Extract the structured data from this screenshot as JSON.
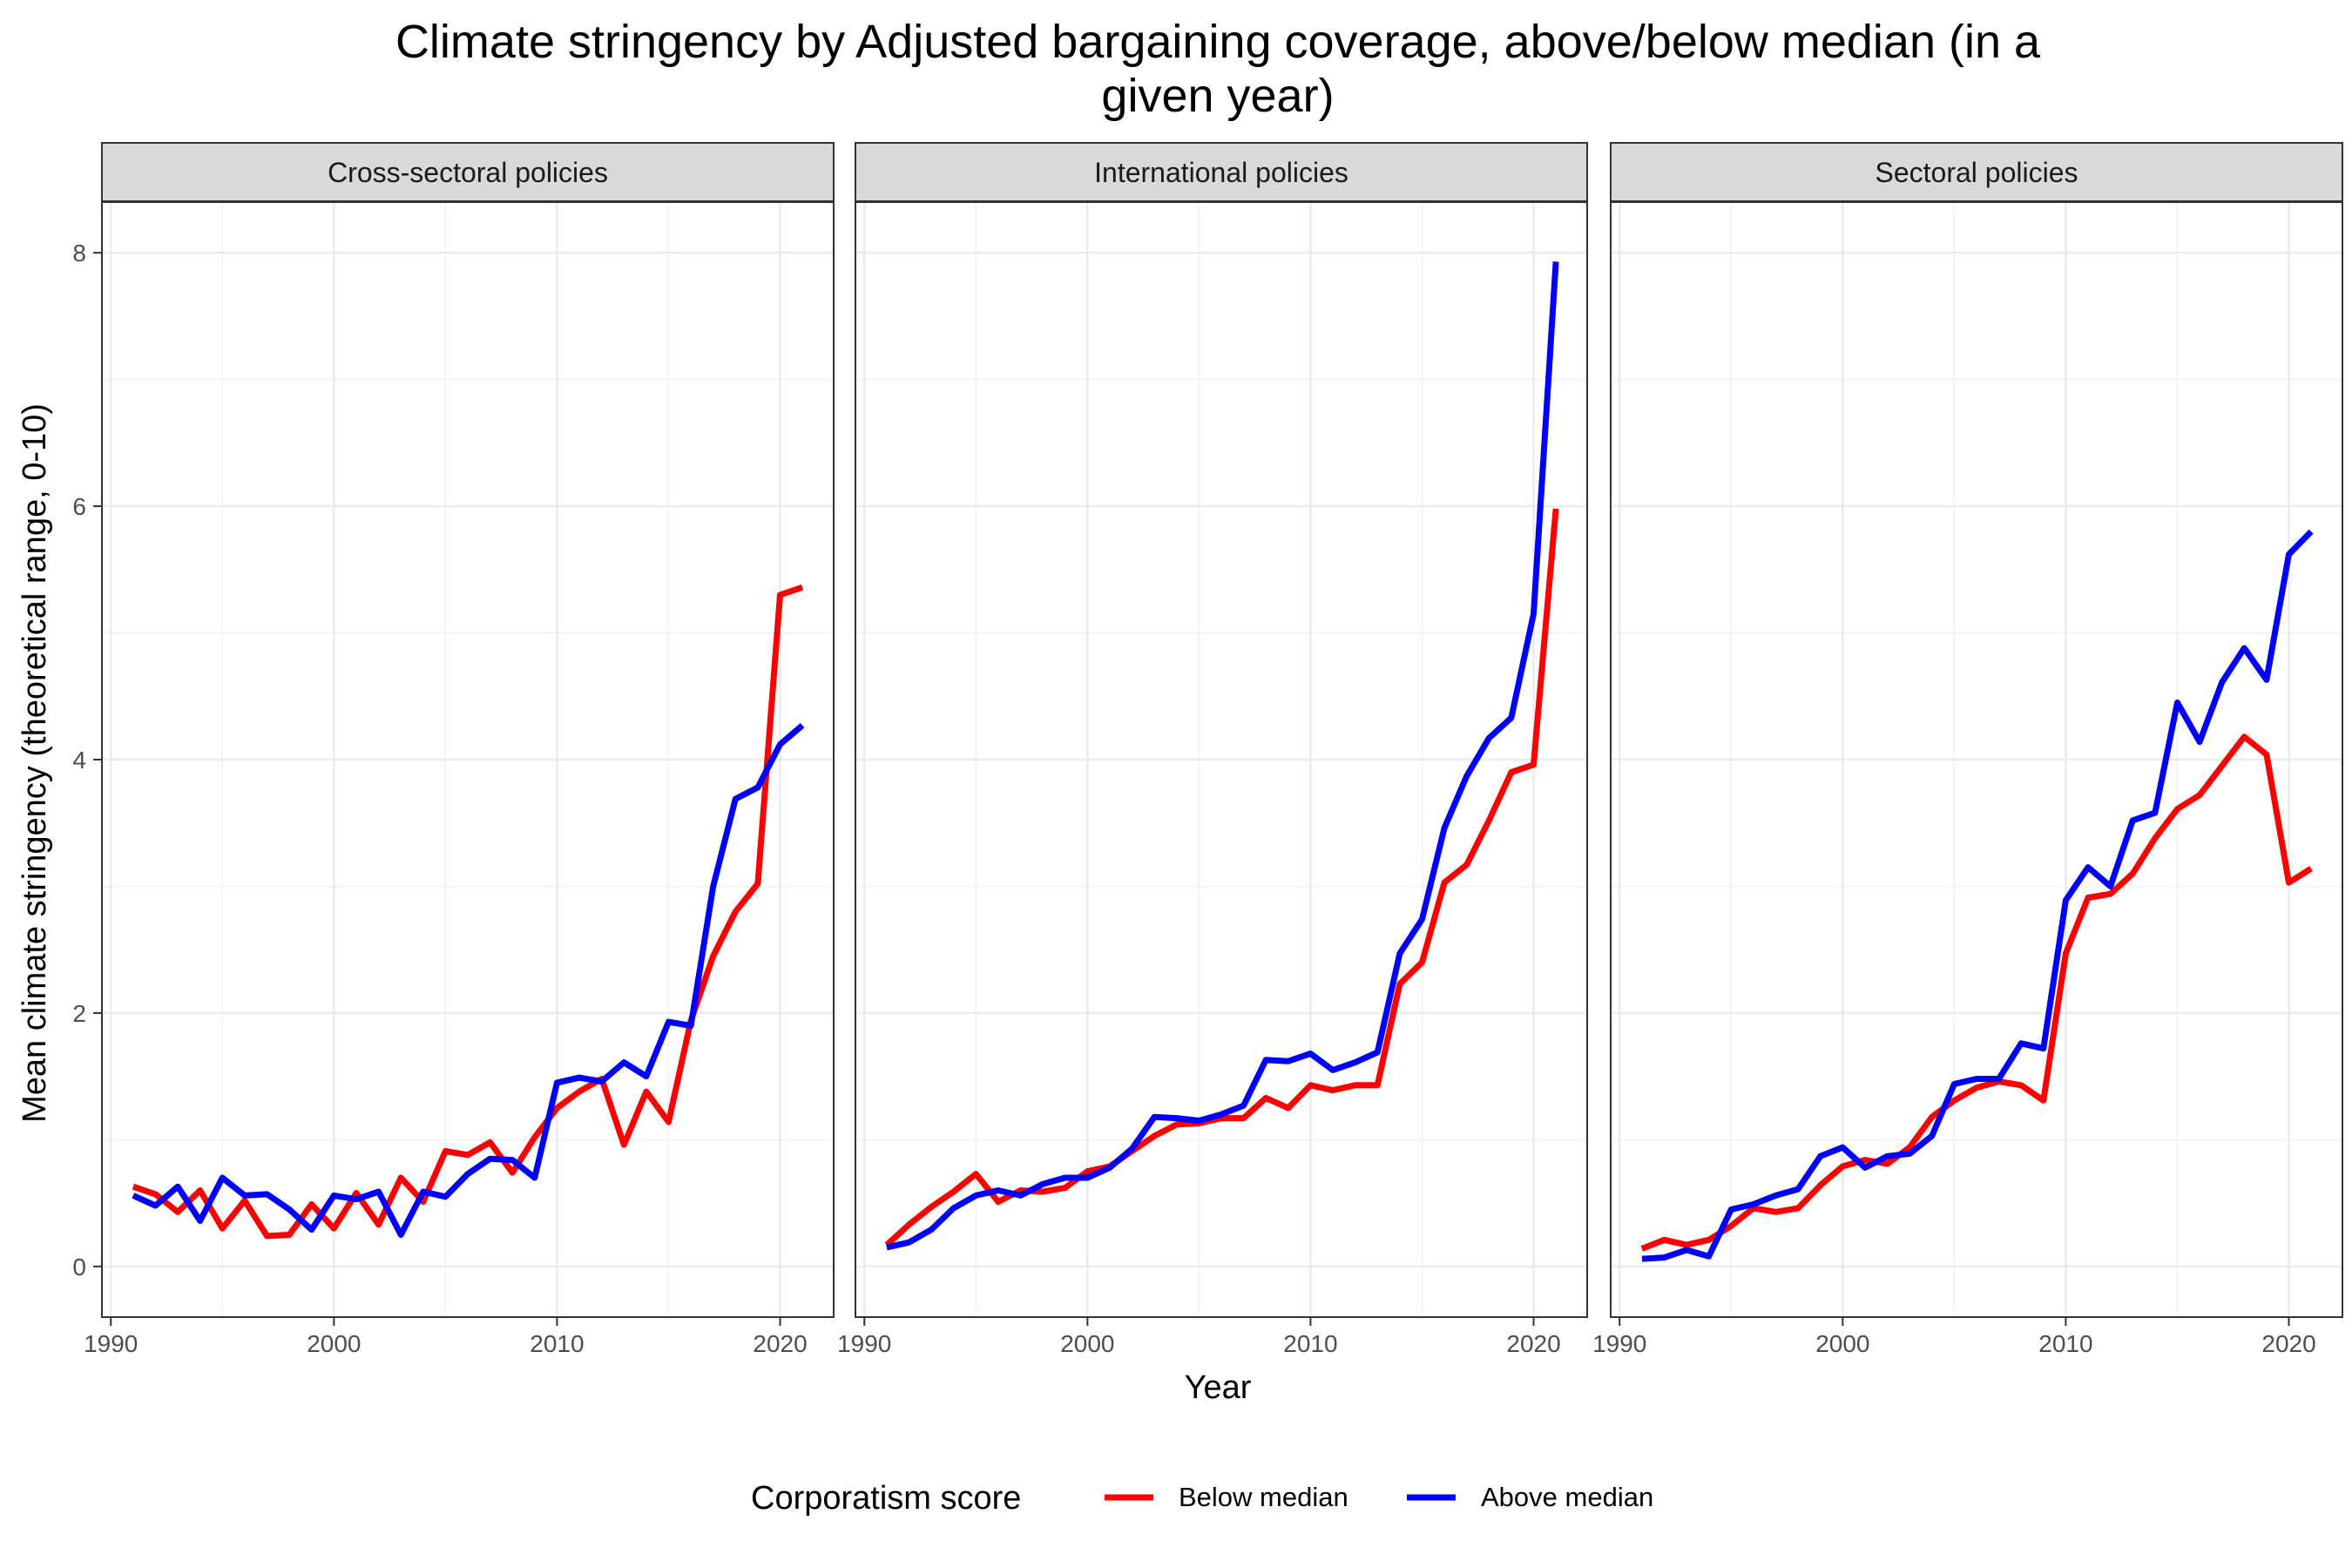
{
  "chart_data": {
    "type": "line",
    "title_line1": "Climate stringency by Adjusted bargaining coverage, above/below median (in a",
    "title_line2": "given year)",
    "xlabel": "Year",
    "ylabel": "Mean climate stringency (theoretical range, 0-10)",
    "xlim": [
      1989.6,
      2022.4
    ],
    "ylim": [
      -0.4,
      8.4
    ],
    "x_ticks": [
      1990,
      2000,
      2010,
      2020
    ],
    "y_ticks": [
      0,
      2,
      4,
      6,
      8
    ],
    "x_tick_labels": [
      "1990",
      "2000",
      "2010",
      "2020"
    ],
    "y_tick_labels": [
      "0",
      "2",
      "4",
      "6",
      "8"
    ],
    "grid": true,
    "legend": {
      "position": "bottom",
      "title": "Corporatism score",
      "entries": [
        "Below median",
        "Above median"
      ]
    },
    "colors": {
      "below": "#ff0000",
      "above": "#0000ff"
    },
    "x": [
      1991,
      1992,
      1993,
      1994,
      1995,
      1996,
      1997,
      1998,
      1999,
      2000,
      2001,
      2002,
      2003,
      2004,
      2005,
      2006,
      2007,
      2008,
      2009,
      2010,
      2011,
      2012,
      2013,
      2014,
      2015,
      2016,
      2017,
      2018,
      2019,
      2020,
      2021
    ],
    "panels": [
      {
        "label": "Cross-sectoral policies",
        "series": [
          {
            "name": "Below median",
            "values": [
              0.63,
              0.57,
              0.43,
              0.6,
              0.3,
              0.52,
              0.24,
              0.25,
              0.49,
              0.3,
              0.58,
              0.33,
              0.7,
              0.51,
              0.91,
              0.88,
              0.98,
              0.74,
              1.02,
              1.25,
              1.38,
              1.48,
              0.96,
              1.38,
              1.14,
              1.94,
              2.45,
              2.8,
              3.02,
              5.3,
              5.36
            ]
          },
          {
            "name": "Above median",
            "values": [
              0.56,
              0.48,
              0.63,
              0.36,
              0.7,
              0.56,
              0.57,
              0.45,
              0.29,
              0.56,
              0.53,
              0.59,
              0.25,
              0.59,
              0.55,
              0.73,
              0.85,
              0.84,
              0.7,
              1.45,
              1.49,
              1.46,
              1.61,
              1.5,
              1.93,
              1.9,
              3.0,
              3.69,
              3.78,
              4.12,
              4.27
            ]
          }
        ]
      },
      {
        "label": "International policies",
        "series": [
          {
            "name": "Below median",
            "values": [
              0.17,
              0.33,
              0.47,
              0.59,
              0.73,
              0.51,
              0.6,
              0.59,
              0.62,
              0.75,
              0.79,
              0.91,
              1.03,
              1.12,
              1.13,
              1.17,
              1.17,
              1.33,
              1.25,
              1.43,
              1.39,
              1.43,
              1.43,
              2.23,
              2.4,
              3.03,
              3.17,
              3.52,
              3.9,
              3.96,
              5.98
            ]
          },
          {
            "name": "Above median",
            "values": [
              0.15,
              0.19,
              0.29,
              0.46,
              0.56,
              0.6,
              0.56,
              0.65,
              0.7,
              0.7,
              0.78,
              0.93,
              1.18,
              1.17,
              1.15,
              1.2,
              1.27,
              1.63,
              1.62,
              1.68,
              1.55,
              1.61,
              1.69,
              2.47,
              2.74,
              3.46,
              3.87,
              4.17,
              4.33,
              5.15,
              7.93
            ]
          }
        ]
      },
      {
        "label": "Sectoral policies",
        "series": [
          {
            "name": "Below median",
            "values": [
              0.14,
              0.21,
              0.17,
              0.21,
              0.32,
              0.46,
              0.43,
              0.46,
              0.64,
              0.79,
              0.84,
              0.81,
              0.94,
              1.18,
              1.31,
              1.41,
              1.46,
              1.43,
              1.31,
              2.47,
              2.91,
              2.94,
              3.1,
              3.38,
              3.61,
              3.72,
              3.95,
              4.18,
              4.04,
              3.03,
              3.14
            ]
          },
          {
            "name": "Above median",
            "values": [
              0.06,
              0.07,
              0.13,
              0.08,
              0.45,
              0.49,
              0.56,
              0.61,
              0.87,
              0.94,
              0.78,
              0.87,
              0.89,
              1.03,
              1.44,
              1.48,
              1.48,
              1.76,
              1.72,
              2.89,
              3.15,
              3.0,
              3.52,
              3.58,
              4.45,
              4.14,
              4.61,
              4.88,
              4.63,
              5.62,
              5.8
            ]
          }
        ]
      }
    ]
  }
}
